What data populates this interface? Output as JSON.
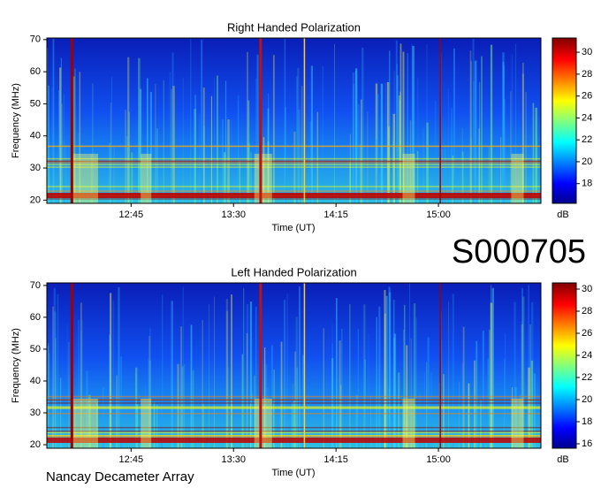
{
  "chart_data": [
    {
      "type": "heatmap",
      "title": "Right Handed Polarization",
      "xlabel": "Time (UT)",
      "ylabel": "Frequency (MHz)",
      "xlim": [
        728,
        945
      ],
      "xticks": [
        {
          "value": 765,
          "label": "12:45"
        },
        {
          "value": 810,
          "label": "13:30"
        },
        {
          "value": 855,
          "label": "14:15"
        },
        {
          "value": 900,
          "label": "15:00"
        }
      ],
      "ylim": [
        19,
        70.5
      ],
      "yticks": [
        20,
        30,
        40,
        50,
        60,
        70
      ],
      "colorbar": {
        "label": "dB",
        "lim": [
          16.2,
          31.3
        ],
        "ticks": [
          18,
          20,
          22,
          24,
          26,
          28,
          30
        ]
      }
    },
    {
      "type": "heatmap",
      "title": "Left Handed Polarization",
      "xlabel": "Time (UT)",
      "ylabel": "Frequency (MHz)",
      "xlim": [
        728,
        945
      ],
      "xticks": [
        {
          "value": 765,
          "label": "12:45"
        },
        {
          "value": 810,
          "label": "13:30"
        },
        {
          "value": 855,
          "label": "14:15"
        },
        {
          "value": 900,
          "label": "15:00"
        }
      ],
      "ylim": [
        18.9,
        70.8
      ],
      "yticks": [
        20,
        30,
        40,
        50,
        60,
        70
      ],
      "colorbar": {
        "label": "dB",
        "lim": [
          15.6,
          30.56
        ],
        "ticks": [
          16,
          18,
          20,
          22,
          24,
          26,
          28,
          30
        ]
      }
    }
  ],
  "observation_id": "S000705",
  "instrument": "Nancay Decameter Array"
}
